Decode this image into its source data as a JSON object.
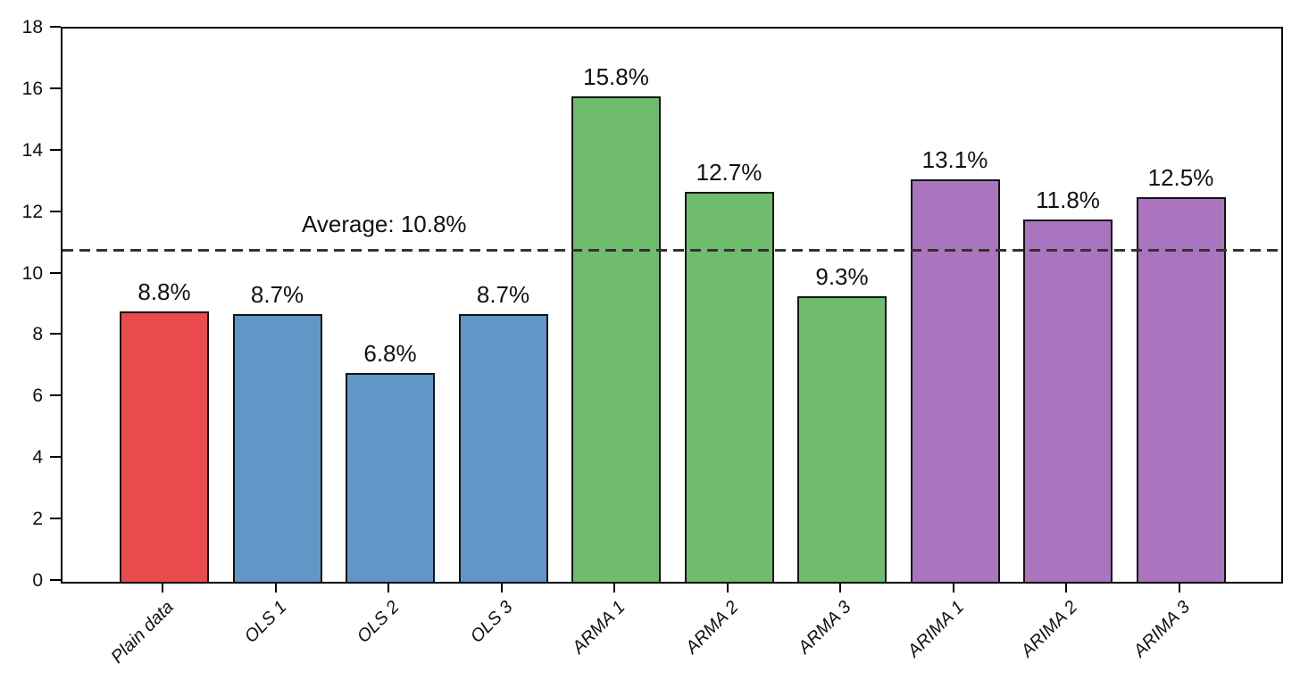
{
  "chart_data": {
    "type": "bar",
    "title": "",
    "xlabel": "",
    "ylabel": "",
    "categories": [
      "Plain data",
      "OLS 1",
      "OLS 2",
      "OLS 3",
      "ARMA 1",
      "ARMA 2",
      "ARMA 3",
      "ARIMA 1",
      "ARIMA 2",
      "ARIMA 3"
    ],
    "values": [
      8.8,
      8.7,
      6.8,
      8.7,
      15.8,
      12.7,
      9.3,
      13.1,
      11.8,
      12.5
    ],
    "value_labels": [
      "8.8%",
      "8.7%",
      "6.8%",
      "8.7%",
      "15.8%",
      "12.7%",
      "9.3%",
      "13.1%",
      "11.8%",
      "12.5%"
    ],
    "groups": [
      "plain",
      "ols",
      "ols",
      "ols",
      "arma",
      "arma",
      "arma",
      "arima",
      "arima",
      "arima"
    ],
    "group_colors": {
      "plain": "#e94a4d",
      "ols": "#6097c6",
      "arma": "#6fbc6d",
      "arima": "#ab74be"
    },
    "bar_edge_color": "#131313",
    "ylim": [
      0,
      18
    ],
    "yticks": [
      0,
      2,
      4,
      6,
      8,
      10,
      12,
      14,
      16,
      18
    ],
    "grid": false,
    "legend": null,
    "average_line": {
      "value": 10.8,
      "label": "Average: 10.8%",
      "style": "dashed",
      "color": "#333333"
    }
  }
}
